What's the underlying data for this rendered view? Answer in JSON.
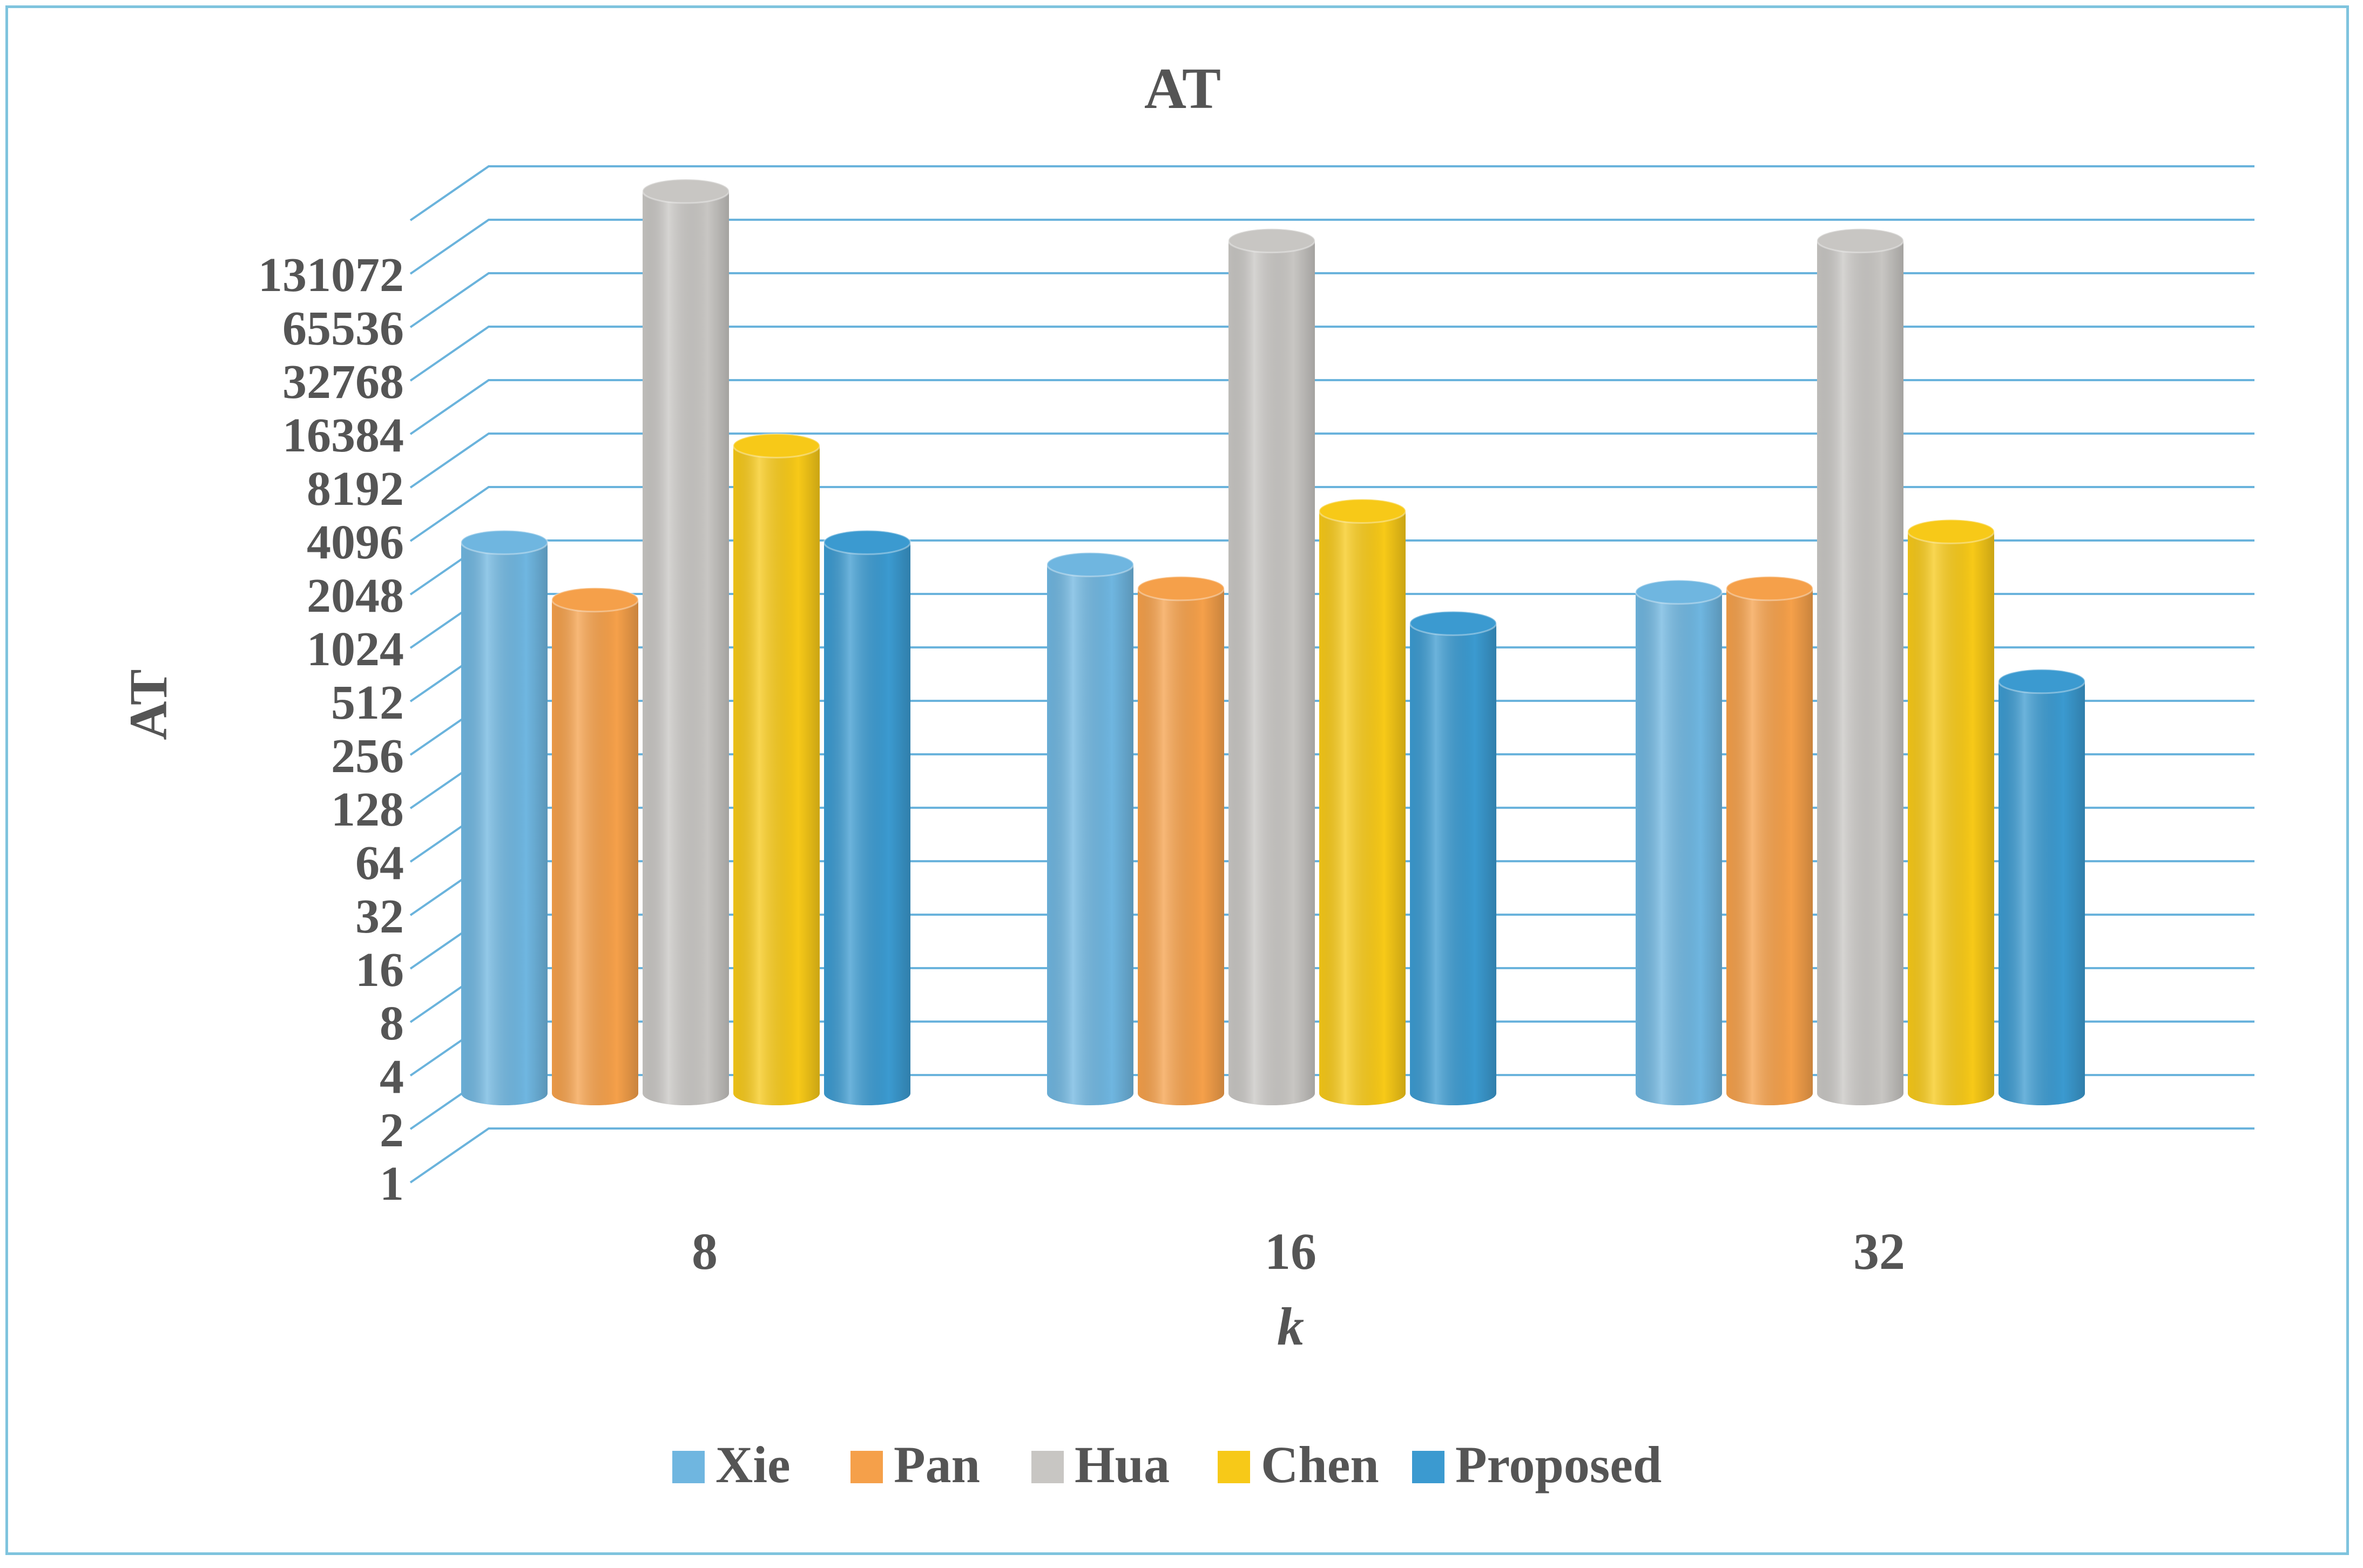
{
  "chart_data": {
    "type": "bar",
    "style": "3d-cylinder",
    "title": "AT",
    "xlabel": "k",
    "ylabel": "AT",
    "yscale": "log2",
    "ylim": [
      1,
      131072
    ],
    "yticks": [
      "1",
      "2",
      "4",
      "8",
      "16",
      "32",
      "64",
      "128",
      "256",
      "512",
      "1024",
      "2048",
      "4096",
      "8192",
      "16384",
      "32768",
      "65536",
      "131072"
    ],
    "categories": [
      "8",
      "16",
      "32"
    ],
    "grid": true,
    "legend_position": "bottom",
    "series": [
      {
        "name": "Xie",
        "color": "#6fb6e0",
        "values": [
          2000,
          1500,
          1050
        ]
      },
      {
        "name": "Pan",
        "color": "#f5a04a",
        "values": [
          950,
          1100,
          1100
        ]
      },
      {
        "name": "Hua",
        "color": "#c8c6c3",
        "values": [
          190000,
          100000,
          100000
        ]
      },
      {
        "name": "Chen",
        "color": "#f7c918",
        "values": [
          7000,
          3000,
          2300
        ]
      },
      {
        "name": "Proposed",
        "color": "#3b9ad0",
        "values": [
          2000,
          700,
          330
        ]
      }
    ]
  }
}
